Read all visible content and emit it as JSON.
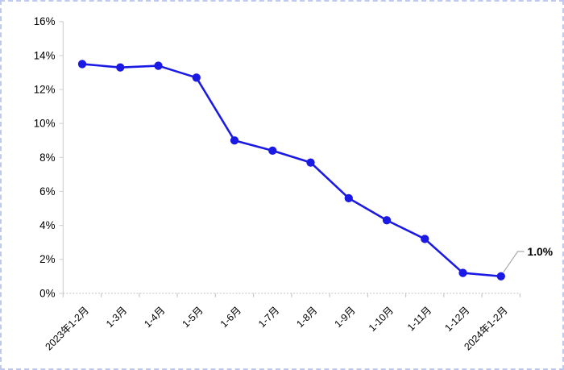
{
  "chart_data": {
    "type": "line",
    "title": "",
    "xlabel": "",
    "ylabel": "",
    "categories": [
      "2023年1-2月",
      "1-3月",
      "1-4月",
      "1-5月",
      "1-6月",
      "1-7月",
      "1-8月",
      "1-9月",
      "1-10月",
      "1-11月",
      "1-12月",
      "2024年1-2月"
    ],
    "values": [
      13.5,
      13.3,
      13.4,
      12.7,
      9.0,
      8.4,
      7.7,
      5.6,
      4.3,
      3.2,
      1.2,
      1.0
    ],
    "ylim": [
      0,
      16
    ],
    "ytick_values": [
      0,
      2,
      4,
      6,
      8,
      10,
      12,
      14,
      16
    ],
    "ytick_labels": [
      "0%",
      "2%",
      "4%",
      "6%",
      "8%",
      "10%",
      "12%",
      "14%",
      "16%"
    ],
    "grid": false,
    "legend": "none",
    "end_label": "1.0%",
    "colors": {
      "line": "#1b1ae4",
      "marker": "#1b1ae4",
      "axis": "#d4d4d4",
      "tick": "#c9c9c9",
      "text": "#000000",
      "leader": "#a9a9a9",
      "border": "#bdc9ee",
      "background": "#ffffff"
    }
  }
}
